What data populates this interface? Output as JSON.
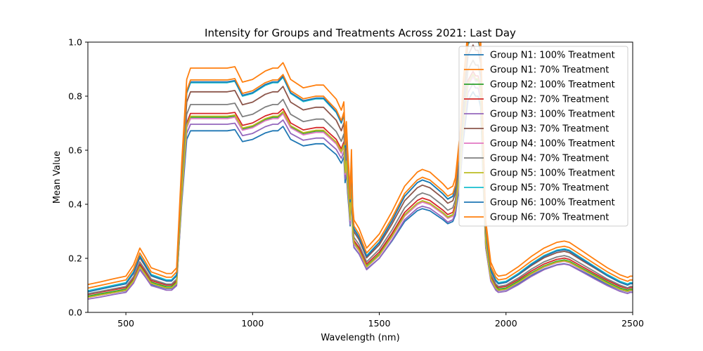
{
  "chart_data": {
    "type": "line",
    "title": "Intensity for Groups and Treatments Across 2021: Last Day",
    "xlabel": "Wavelength (nm)",
    "ylabel": "Mean Value",
    "xlim": [
      350,
      2500
    ],
    "ylim": [
      0,
      1.0
    ],
    "x_ticks": [
      500,
      1000,
      1500,
      2000,
      2500
    ],
    "x_tick_labels": [
      "500",
      "1000",
      "1500",
      "2000",
      "2500"
    ],
    "y_ticks": [
      0.0,
      0.2,
      0.4,
      0.6,
      0.8,
      1.0
    ],
    "y_tick_labels": [
      "0.0",
      "0.2",
      "0.4",
      "0.6",
      "0.8",
      "1.0"
    ],
    "grid": false,
    "legend_position": "top-right",
    "x": [
      350,
      400,
      450,
      500,
      530,
      555,
      575,
      600,
      630,
      660,
      680,
      700,
      720,
      740,
      755,
      770,
      800,
      850,
      900,
      930,
      960,
      1000,
      1050,
      1080,
      1100,
      1120,
      1130,
      1150,
      1200,
      1250,
      1280,
      1300,
      1330,
      1350,
      1360,
      1365,
      1370,
      1375,
      1380,
      1385,
      1390,
      1395,
      1400,
      1420,
      1450,
      1500,
      1550,
      1600,
      1650,
      1670,
      1700,
      1750,
      1770,
      1790,
      1800,
      1820,
      1830,
      1840,
      1850,
      1870,
      1880,
      1890,
      1900,
      1910,
      1920,
      1940,
      1960,
      1970,
      2000,
      2050,
      2100,
      2150,
      2200,
      2230,
      2250,
      2300,
      2350,
      2400,
      2450,
      2480,
      2490,
      2500
    ],
    "base_shape": [
      0.07,
      0.08,
      0.09,
      0.1,
      0.14,
      0.2,
      0.17,
      0.13,
      0.12,
      0.11,
      0.11,
      0.13,
      0.5,
      0.8,
      0.84,
      0.84,
      0.84,
      0.84,
      0.84,
      0.845,
      0.79,
      0.8,
      0.83,
      0.84,
      0.84,
      0.86,
      0.84,
      0.8,
      0.77,
      0.78,
      0.78,
      0.76,
      0.73,
      0.69,
      0.72,
      0.6,
      0.65,
      0.55,
      0.48,
      0.4,
      0.55,
      0.35,
      0.3,
      0.27,
      0.2,
      0.25,
      0.33,
      0.42,
      0.47,
      0.48,
      0.47,
      0.43,
      0.41,
      0.42,
      0.45,
      0.62,
      0.78,
      0.88,
      0.98,
      1.02,
      1.0,
      1.0,
      0.95,
      0.6,
      0.3,
      0.15,
      0.11,
      0.1,
      0.105,
      0.135,
      0.17,
      0.2,
      0.22,
      0.225,
      0.22,
      0.19,
      0.16,
      0.13,
      0.105,
      0.095,
      0.1,
      0.1
    ],
    "series": [
      {
        "name": "Group N1: 100% Treatment",
        "color": "#1f77b4",
        "scale": 0.8,
        "offset": 0.0,
        "values": null
      },
      {
        "name": "Group N1: 70% Treatment",
        "color": "#ff7f0e",
        "scale": 1.04,
        "offset": 0.03,
        "values": null
      },
      {
        "name": "Group N2: 100% Treatment",
        "color": "#2ca02c",
        "scale": 0.86,
        "offset": 0.0,
        "values": null
      },
      {
        "name": "Group N2: 70% Treatment",
        "color": "#d62728",
        "scale": 0.87,
        "offset": 0.005,
        "values": null
      },
      {
        "name": "Group N3: 100% Treatment",
        "color": "#9467bd",
        "scale": 0.84,
        "offset": -0.01,
        "values": null
      },
      {
        "name": "Group N3: 70% Treatment",
        "color": "#8c564b",
        "scale": 0.96,
        "offset": 0.01,
        "values": null
      },
      {
        "name": "Group N4: 100% Treatment",
        "color": "#e377c2",
        "scale": 0.86,
        "offset": -0.005,
        "values": null
      },
      {
        "name": "Group N4: 70% Treatment",
        "color": "#7f7f7f",
        "scale": 0.91,
        "offset": 0.005,
        "values": null
      },
      {
        "name": "Group N5: 100% Treatment",
        "color": "#bcbd22",
        "scale": 0.87,
        "offset": -0.005,
        "values": null
      },
      {
        "name": "Group N5: 70% Treatment",
        "color": "#17becf",
        "scale": 1.0,
        "offset": 0.01,
        "values": null
      },
      {
        "name": "Group N6: 100% Treatment",
        "color": "#1f77b4",
        "scale": 1.01,
        "offset": 0.005,
        "values": null
      },
      {
        "name": "Group N6: 70% Treatment",
        "color": "#ff7f0e",
        "scale": 1.0,
        "offset": 0.02,
        "values": null
      }
    ]
  }
}
